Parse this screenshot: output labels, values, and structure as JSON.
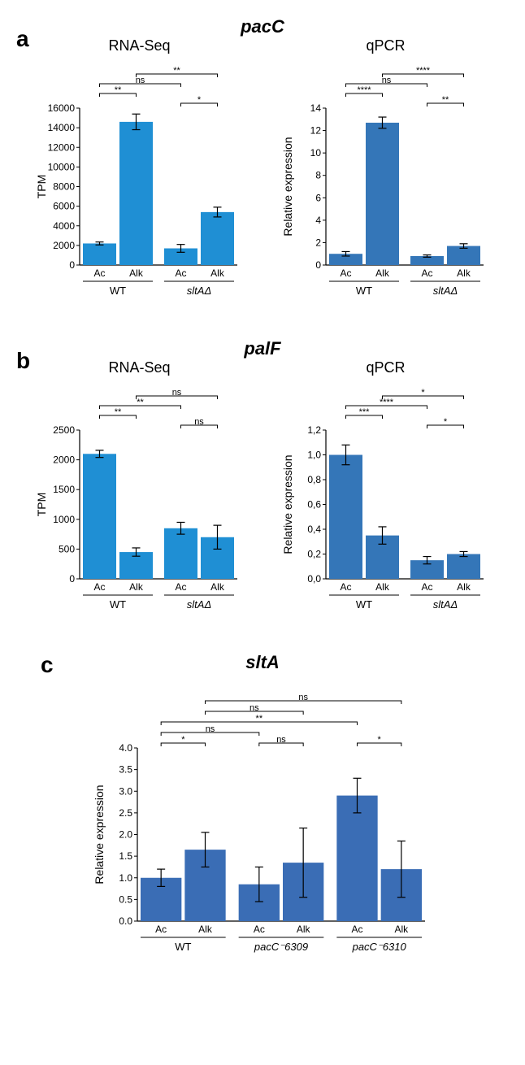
{
  "colors": {
    "bar": "#1f8fd4",
    "bar_c": "#3a6db5",
    "axis": "#000000",
    "bg": "#ffffff"
  },
  "panelA": {
    "label": "a",
    "title": "pacC",
    "charts": {
      "rnaseq": {
        "title": "RNA-Seq",
        "ylabel": "TPM",
        "ymax": 16000,
        "ystep": 2000,
        "cats": [
          "Ac",
          "Alk",
          "Ac",
          "Alk"
        ],
        "groups": [
          "WT",
          "sltAΔ"
        ],
        "values": [
          2200,
          14600,
          1700,
          5400
        ],
        "errs": [
          150,
          800,
          400,
          500
        ],
        "sig": [
          {
            "from": 0,
            "to": 1,
            "label": "**",
            "lvl": 1
          },
          {
            "from": 0,
            "to": 2,
            "label": "ns",
            "lvl": 2
          },
          {
            "from": 1,
            "to": 3,
            "label": "**",
            "lvl": 3
          },
          {
            "from": 2,
            "to": 3,
            "label": "*",
            "lvl": 0
          }
        ]
      },
      "qpcr": {
        "title": "qPCR",
        "ylabel": "Relative expression",
        "ymax": 14,
        "ystep": 2,
        "cats": [
          "Ac",
          "Alk",
          "Ac",
          "Alk"
        ],
        "groups": [
          "WT",
          "sltAΔ"
        ],
        "values": [
          1.0,
          12.7,
          0.8,
          1.7
        ],
        "errs": [
          0.2,
          0.5,
          0.1,
          0.2
        ],
        "sig": [
          {
            "from": 0,
            "to": 1,
            "label": "****",
            "lvl": 1
          },
          {
            "from": 0,
            "to": 2,
            "label": "ns",
            "lvl": 2
          },
          {
            "from": 1,
            "to": 3,
            "label": "****",
            "lvl": 3
          },
          {
            "from": 2,
            "to": 3,
            "label": "**",
            "lvl": 0
          }
        ]
      }
    }
  },
  "panelB": {
    "label": "b",
    "title": "palF",
    "charts": {
      "rnaseq": {
        "title": "RNA-Seq",
        "ylabel": "TPM",
        "ymax": 2500,
        "ystep": 500,
        "cats": [
          "Ac",
          "Alk",
          "Ac",
          "Alk"
        ],
        "groups": [
          "WT",
          "sltAΔ"
        ],
        "values": [
          2100,
          450,
          850,
          700
        ],
        "errs": [
          60,
          70,
          100,
          200
        ],
        "sig": [
          {
            "from": 0,
            "to": 1,
            "label": "**",
            "lvl": 1
          },
          {
            "from": 0,
            "to": 2,
            "label": "**",
            "lvl": 2
          },
          {
            "from": 1,
            "to": 3,
            "label": "ns",
            "lvl": 3
          },
          {
            "from": 2,
            "to": 3,
            "label": "ns",
            "lvl": 0
          }
        ]
      },
      "qpcr": {
        "title": "qPCR",
        "ylabel": "Relative expression",
        "ymax": 1.2,
        "ystep": 0.2,
        "decimal_comma": true,
        "cats": [
          "Ac",
          "Alk",
          "Ac",
          "Alk"
        ],
        "groups": [
          "WT",
          "sltAΔ"
        ],
        "values": [
          1.0,
          0.35,
          0.15,
          0.2
        ],
        "errs": [
          0.08,
          0.07,
          0.03,
          0.02
        ],
        "sig": [
          {
            "from": 0,
            "to": 1,
            "label": "***",
            "lvl": 1
          },
          {
            "from": 0,
            "to": 2,
            "label": "****",
            "lvl": 2
          },
          {
            "from": 1,
            "to": 3,
            "label": "*",
            "lvl": 3
          },
          {
            "from": 2,
            "to": 3,
            "label": "*",
            "lvl": 0
          }
        ]
      }
    }
  },
  "panelC": {
    "label": "c",
    "title": "sltA",
    "chart": {
      "ylabel": "Relative expression",
      "ymax": 4.0,
      "ystep": 0.5,
      "cats": [
        "Ac",
        "Alk",
        "Ac",
        "Alk",
        "Ac",
        "Alk"
      ],
      "groups": [
        "WT",
        "pacC⁻6309",
        "pacC⁻6310"
      ],
      "values": [
        1.0,
        1.65,
        0.85,
        1.35,
        2.9,
        1.2
      ],
      "errs": [
        0.2,
        0.4,
        0.4,
        0.8,
        0.4,
        0.65
      ],
      "sig": [
        {
          "from": 0,
          "to": 1,
          "label": "*",
          "lvl": 0
        },
        {
          "from": 2,
          "to": 3,
          "label": "ns",
          "lvl": 0
        },
        {
          "from": 4,
          "to": 5,
          "label": "*",
          "lvl": 0
        },
        {
          "from": 0,
          "to": 2,
          "label": "ns",
          "lvl": 1
        },
        {
          "from": 0,
          "to": 4,
          "label": "**",
          "lvl": 2
        },
        {
          "from": 1,
          "to": 3,
          "label": "ns",
          "lvl": 3
        },
        {
          "from": 1,
          "to": 5,
          "label": "ns",
          "lvl": 4
        }
      ]
    }
  }
}
